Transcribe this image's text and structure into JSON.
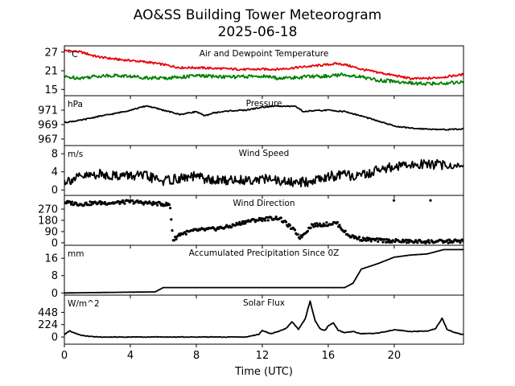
{
  "chart_data": {
    "type": "line",
    "title": "AO&SS Building Tower Meteorogram",
    "subtitle": "2025-06-18",
    "xlabel": "Time (UTC)",
    "xlim": [
      0,
      24.2
    ],
    "x_ticks": [
      0,
      4,
      8,
      12,
      16,
      20
    ],
    "x_tick_labels": [
      "0",
      "4",
      "8",
      "12",
      "16",
      "20"
    ],
    "panels": [
      {
        "id": "temp",
        "title": "Air and Dewpoint Temperature",
        "unit": "°C",
        "ylim": [
          13,
          29
        ],
        "y_ticks": [
          15,
          21,
          27
        ],
        "y_tick_labels": [
          "15",
          "21",
          "27"
        ],
        "series": [
          {
            "color": "#e8000b",
            "style": "line",
            "x": [
              0,
              0.5,
              1,
              2,
              3,
              3.5,
              4,
              5,
              6,
              6.5,
              7,
              8,
              9,
              10,
              11,
              12,
              13,
              14,
              15,
              16,
              16.5,
              17,
              18,
              19,
              20,
              21,
              22,
              23,
              24.2
            ],
            "values": [
              27.5,
              27.3,
              27.0,
              25.5,
              24.8,
              24.5,
              24.3,
              23.8,
              23.0,
              22.5,
              22.0,
              22.0,
              21.8,
              21.6,
              21.4,
              21.5,
              21.5,
              22.0,
              22.5,
              23.0,
              23.3,
              23.0,
              21.5,
              20.5,
              19.5,
              18.5,
              18.5,
              19.0,
              19.8
            ]
          },
          {
            "color": "#008000",
            "style": "line",
            "x": [
              0,
              1,
              2,
              3,
              4,
              5,
              6,
              7,
              8,
              9,
              10,
              11,
              12,
              13,
              14,
              15,
              16,
              17,
              18,
              19,
              20,
              21,
              22,
              23,
              24.2
            ],
            "values": [
              19.0,
              18.7,
              19.3,
              19.5,
              19.2,
              18.8,
              18.6,
              19.0,
              19.4,
              19.2,
              19.0,
              19.1,
              19.3,
              18.6,
              18.8,
              19.2,
              19.3,
              19.8,
              19.0,
              18.0,
              17.6,
              17.0,
              16.8,
              17.0,
              17.5
            ]
          }
        ]
      },
      {
        "id": "pressure",
        "title": "Pressure",
        "unit": "hPa",
        "ylim": [
          966.1,
          973.0
        ],
        "y_ticks": [
          967,
          969,
          971
        ],
        "y_tick_labels": [
          "967",
          "969",
          "971"
        ],
        "series": [
          {
            "color": "#000000",
            "style": "line",
            "x": [
              0,
              1,
              2,
              3,
              4,
              5,
              6,
              7,
              8,
              8.5,
              9,
              10,
              11,
              12,
              13,
              14,
              14.5,
              15,
              16,
              17,
              18,
              19,
              20,
              21,
              22,
              23,
              24.2
            ],
            "values": [
              969.3,
              969.6,
              970.1,
              970.5,
              971.0,
              971.6,
              971.0,
              970.4,
              970.8,
              970.2,
              970.6,
              970.9,
              971.0,
              971.4,
              971.6,
              971.5,
              970.8,
              970.9,
              971.0,
              970.8,
              970.2,
              969.5,
              968.8,
              968.5,
              968.4,
              968.3,
              968.4
            ]
          }
        ]
      },
      {
        "id": "wind_speed",
        "title": "Wind Speed",
        "unit": "m/s",
        "ylim": [
          -1.2,
          9.8
        ],
        "y_ticks": [
          0,
          4,
          8
        ],
        "y_tick_labels": [
          "0",
          "4",
          "8"
        ],
        "series": [
          {
            "color": "#000000",
            "style": "line",
            "x": [
              0,
              1,
              2,
              3,
              4,
              5,
              6,
              7,
              8,
              9,
              10,
              11,
              12,
              13,
              14,
              15,
              16,
              17,
              18,
              19,
              20,
              21,
              22,
              23,
              24.2
            ],
            "values": [
              2.0,
              2.8,
              3.5,
              3.2,
              3.2,
              3.0,
              2.0,
              2.5,
              3.0,
              2.0,
              2.2,
              2.2,
              2.5,
              2.0,
              1.5,
              2.0,
              3.0,
              3.2,
              3.0,
              4.5,
              5.0,
              5.5,
              5.8,
              5.5,
              5.2
            ]
          }
        ]
      },
      {
        "id": "wind_direction",
        "title": "Wind Direction",
        "unit": "",
        "ylim": [
          -20,
          380
        ],
        "y_ticks": [
          0,
          90,
          180,
          270
        ],
        "y_tick_labels": [
          "0",
          "90",
          "180",
          "270"
        ],
        "series": [
          {
            "color": "#000000",
            "style": "dots",
            "x": [
              0,
              1,
              2,
              3,
              4,
              5,
              6,
              6.4,
              6.6,
              7,
              8,
              9,
              10,
              11,
              12,
              13,
              13.5,
              14,
              14.3,
              15,
              16,
              16.5,
              17.2,
              18,
              19,
              20,
              21,
              22,
              23,
              24.2
            ],
            "values": [
              325,
              310,
              320,
              320,
              330,
              320,
              310,
              305,
              20,
              70,
              100,
              110,
              130,
              170,
              190,
              200,
              150,
              90,
              40,
              140,
              150,
              160,
              60,
              30,
              20,
              15,
              10,
              10,
              10,
              15
            ]
          }
        ]
      },
      {
        "id": "precip",
        "title": "Accumulated Precipitation Since 0Z",
        "unit": "mm",
        "ylim": [
          -1,
          22
        ],
        "y_ticks": [
          0,
          8,
          16
        ],
        "y_tick_labels": [
          "0",
          "8",
          "16"
        ],
        "series": [
          {
            "color": "#000000",
            "style": "line",
            "x": [
              0,
              5.5,
              6,
              17,
              17.5,
              18,
              19,
              20,
              21,
              22,
              23,
              24.2
            ],
            "values": [
              0,
              0.5,
              2.5,
              2.5,
              4.5,
              11,
              13.5,
              16.5,
              17.5,
              18,
              20,
              20
            ]
          }
        ]
      },
      {
        "id": "solar",
        "title": "Solar Flux",
        "unit": "W/m^2",
        "ylim": [
          -130,
          760
        ],
        "y_ticks": [
          0,
          224,
          448
        ],
        "y_tick_labels": [
          "0",
          "224",
          "448"
        ],
        "series": [
          {
            "color": "#000000",
            "style": "line",
            "x": [
              0,
              0.3,
              1,
              2,
              11,
              11.8,
              12,
              12.5,
              13,
              13.5,
              13.8,
              14.2,
              14.6,
              14.9,
              15.2,
              15.5,
              15.8,
              16,
              16.3,
              16.6,
              17,
              17.5,
              18,
              19,
              20,
              21,
              22,
              22.5,
              22.9,
              23.2,
              23.6,
              24.2
            ],
            "values": [
              40,
              110,
              30,
              0,
              0,
              50,
              120,
              60,
              100,
              170,
              280,
              140,
              330,
              650,
              300,
              150,
              120,
              200,
              260,
              120,
              80,
              100,
              60,
              70,
              130,
              100,
              110,
              150,
              340,
              140,
              90,
              40
            ]
          }
        ]
      }
    ]
  }
}
